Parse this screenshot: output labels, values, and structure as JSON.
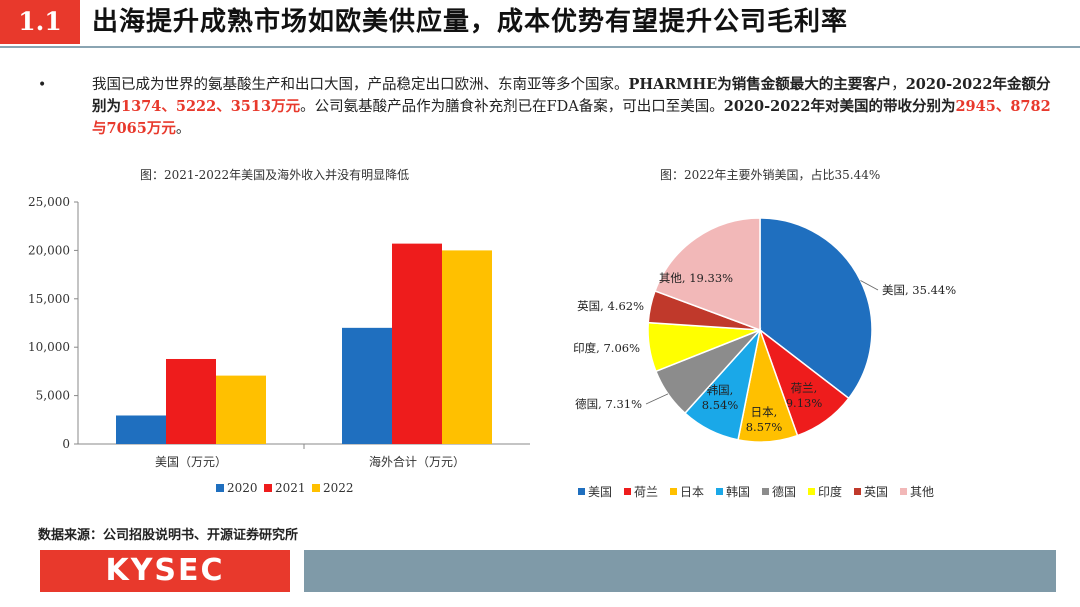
{
  "header": {
    "number": "1.1",
    "title": "出海提升成熟市场如欧美供应量，成本优势有望提升公司毛利率"
  },
  "bullet": {
    "p1": "我国已成为世界的氨基酸生产和出口大国，产品稳定出口欧洲、东南亚等多个国家。",
    "p2_bold": "PHARMHE为销售金额最大的主要客户",
    "p3": "，",
    "p4_bold": "2020-2022年金额分别为",
    "p5_red": "1374、5222、3513万元",
    "p6": "。公司氨基酸产品作为膳食补充剂已在FDA备案，可出口至美国。",
    "p7_bold": "2020-2022年对美国的带收分别为",
    "p8_red": "2945、8782与7065万元",
    "p9": "。"
  },
  "bar_chart_title": "图：2021-2022年美国及海外收入并没有明显降低",
  "pie_chart_title": "图：2022年主要外销美国，占比35.44%",
  "chart_data": [
    {
      "type": "bar",
      "categories": [
        "美国（万元）",
        "海外合计（万元）"
      ],
      "series": [
        {
          "name": "2020",
          "color": "#1f6fbf",
          "values": [
            2945,
            12000
          ]
        },
        {
          "name": "2021",
          "color": "#ee1c1c",
          "values": [
            8782,
            20700
          ]
        },
        {
          "name": "2022",
          "color": "#ffc000",
          "values": [
            7065,
            20000
          ]
        }
      ],
      "yticks": [
        "0",
        "5,000",
        "10,000",
        "15,000",
        "20,000",
        "25,000"
      ],
      "ylim": [
        0,
        25000
      ],
      "legend": "bottom"
    },
    {
      "type": "pie",
      "slices": [
        {
          "name": "美国",
          "value": 35.44,
          "label": "美国, 35.44%",
          "color": "#1f6fbf"
        },
        {
          "name": "荷兰",
          "value": 9.13,
          "label": "荷兰, 9.13%",
          "color": "#ee1c1c"
        },
        {
          "name": "日本",
          "value": 8.57,
          "label": "日本, 8.57%",
          "color": "#ffc000"
        },
        {
          "name": "韩国",
          "value": 8.54,
          "label": "韩国, 8.54%",
          "color": "#1aa8e8"
        },
        {
          "name": "德国",
          "value": 7.31,
          "label": "德国, 7.31%",
          "color": "#8c8c8c"
        },
        {
          "name": "印度",
          "value": 7.06,
          "label": "印度, 7.06%",
          "color": "#ffff00"
        },
        {
          "name": "英国",
          "value": 4.62,
          "label": "英国, 4.62%",
          "color": "#c0392b"
        },
        {
          "name": "其他",
          "value": 19.33,
          "label": "其他, 19.33%",
          "color": "#f2b8b8"
        }
      ],
      "legend": "bottom"
    }
  ],
  "source": "数据来源：公司招股说明书、开源证券研究所",
  "footer": {
    "logo": "KYSEC"
  }
}
